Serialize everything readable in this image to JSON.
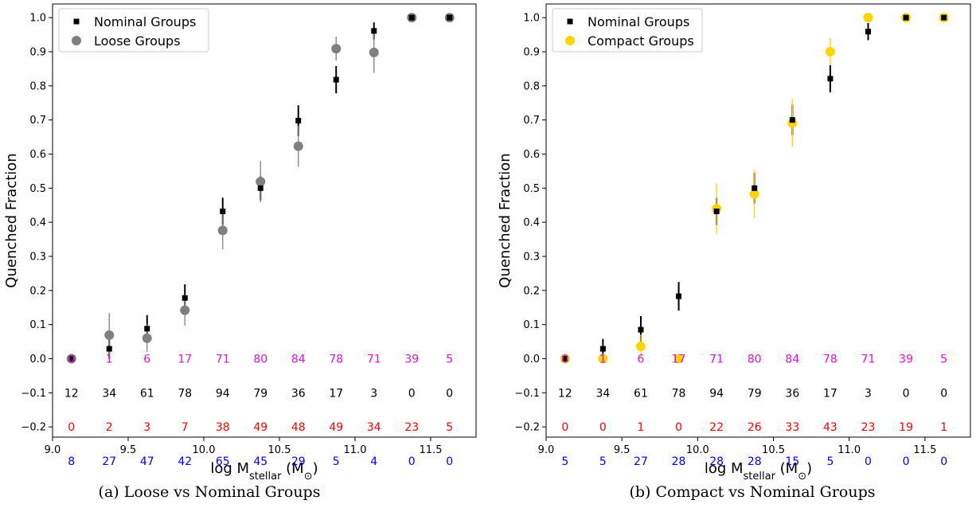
{
  "chart_data": [
    {
      "type": "scatter",
      "ylabel": "Quenched Fraction",
      "xlabel_main": "log M",
      "xlabel_sub": "stellar",
      "xlabel_unit_open": "(M",
      "xlabel_unit_sub": "⊙",
      "xlabel_unit_close": ")",
      "xlim": [
        9.0,
        11.8
      ],
      "ylim": [
        -0.23,
        1.04
      ],
      "xticks": [
        9.0,
        9.5,
        10.0,
        10.5,
        11.0,
        11.5
      ],
      "xtick_labels": [
        "9.0",
        "9.5",
        "10.0",
        "10.5",
        "11.0",
        "11.5"
      ],
      "yticks": [
        -0.2,
        -0.1,
        0.0,
        0.1,
        0.2,
        0.3,
        0.4,
        0.5,
        0.6,
        0.7,
        0.8,
        0.9,
        1.0
      ],
      "ytick_labels": [
        "−0.2",
        "−0.1",
        "0.0",
        "0.1",
        "0.2",
        "0.3",
        "0.4",
        "0.5",
        "0.6",
        "0.7",
        "0.8",
        "0.9",
        "1.0"
      ],
      "legend_position": "top-left",
      "caption": "(a) Loose vs Nominal Groups",
      "series": [
        {
          "name": "Nominal Groups",
          "marker": "square",
          "color": "#000000",
          "x": [
            9.125,
            9.375,
            9.625,
            9.875,
            10.125,
            10.375,
            10.625,
            10.875,
            11.125,
            11.375,
            11.625
          ],
          "y": [
            0.0,
            0.029,
            0.088,
            0.178,
            0.432,
            0.5,
            0.698,
            0.818,
            0.961,
            1.0,
            1.0
          ],
          "err": [
            0.0,
            0.029,
            0.04,
            0.04,
            0.04,
            0.035,
            0.045,
            0.04,
            0.025,
            0.0,
            0.0
          ]
        },
        {
          "name": "Loose Groups",
          "marker": "circle",
          "color": "#808080",
          "x": [
            9.125,
            9.375,
            9.625,
            9.875,
            10.125,
            10.375,
            10.625,
            10.875,
            11.125,
            11.375,
            11.625
          ],
          "y": [
            0.0,
            0.069,
            0.06,
            0.142,
            0.376,
            0.519,
            0.623,
            0.909,
            0.898,
            1.0,
            1.0
          ],
          "err": [
            0.0,
            0.065,
            0.04,
            0.045,
            0.055,
            0.06,
            0.06,
            0.035,
            0.06,
            0.0,
            0.0
          ]
        }
      ],
      "count_rows": [
        {
          "color": "#e010e0",
          "y": 0.0,
          "values": [
            "0",
            "1",
            "6",
            "17",
            "71",
            "80",
            "84",
            "78",
            "71",
            "39",
            "5"
          ]
        },
        {
          "color": "#000000",
          "y": -0.1,
          "values": [
            "12",
            "34",
            "61",
            "78",
            "94",
            "79",
            "36",
            "17",
            "3",
            "0",
            "0"
          ]
        },
        {
          "color": "#ff0000",
          "y": -0.2,
          "values": [
            "0",
            "2",
            "3",
            "7",
            "38",
            "49",
            "48",
            "49",
            "34",
            "23",
            "5"
          ]
        },
        {
          "color": "#0000ff",
          "y": -0.3,
          "values": [
            "8",
            "27",
            "47",
            "42",
            "65",
            "45",
            "29",
            "5",
            "4",
            "0",
            "0"
          ]
        }
      ]
    },
    {
      "type": "scatter",
      "ylabel": "Quenched Fraction",
      "xlabel_main": "log M",
      "xlabel_sub": "stellar",
      "xlabel_unit_open": "(M",
      "xlabel_unit_sub": "⊙",
      "xlabel_unit_close": ")",
      "xlim": [
        9.0,
        11.8
      ],
      "ylim": [
        -0.23,
        1.04
      ],
      "xticks": [
        9.0,
        9.5,
        10.0,
        10.5,
        11.0,
        11.5
      ],
      "xtick_labels": [
        "9.0",
        "9.5",
        "10.0",
        "10.5",
        "11.0",
        "11.5"
      ],
      "yticks": [
        -0.2,
        -0.1,
        0.0,
        0.1,
        0.2,
        0.3,
        0.4,
        0.5,
        0.6,
        0.7,
        0.8,
        0.9,
        1.0
      ],
      "ytick_labels": [
        "−0.2",
        "−0.1",
        "0.0",
        "0.1",
        "0.2",
        "0.3",
        "0.4",
        "0.5",
        "0.6",
        "0.7",
        "0.8",
        "0.9",
        "1.0"
      ],
      "legend_position": "top-left",
      "caption": "(b) Compact vs Nominal Groups",
      "series": [
        {
          "name": "Nominal Groups",
          "marker": "square",
          "color": "#000000",
          "x": [
            9.125,
            9.375,
            9.625,
            9.875,
            10.125,
            10.375,
            10.625,
            10.875,
            11.125,
            11.375,
            11.625
          ],
          "y": [
            0.0,
            0.029,
            0.085,
            0.183,
            0.432,
            0.5,
            0.7,
            0.821,
            0.959,
            1.0,
            1.0
          ],
          "err": [
            0.0,
            0.029,
            0.04,
            0.042,
            0.04,
            0.045,
            0.045,
            0.04,
            0.025,
            0.0,
            0.0
          ]
        },
        {
          "name": "Compact Groups",
          "marker": "circle",
          "color": "#ffd400",
          "x": [
            9.125,
            9.375,
            9.625,
            9.875,
            10.125,
            10.375,
            10.625,
            10.875,
            11.125,
            11.375,
            11.625
          ],
          "y": [
            0.0,
            0.0,
            0.036,
            0.0,
            0.44,
            0.483,
            0.691,
            0.9,
            1.0,
            1.0,
            1.0
          ],
          "err": [
            0.0,
            0.0,
            0.035,
            0.0,
            0.075,
            0.07,
            0.07,
            0.04,
            0.0,
            0.0,
            0.0
          ]
        }
      ],
      "count_rows": [
        {
          "color": "#e010e0",
          "y": 0.0,
          "values": [
            "0",
            "1",
            "6",
            "17",
            "71",
            "80",
            "84",
            "78",
            "71",
            "39",
            "5"
          ]
        },
        {
          "color": "#000000",
          "y": -0.1,
          "values": [
            "12",
            "34",
            "61",
            "78",
            "94",
            "79",
            "36",
            "17",
            "3",
            "0",
            "0"
          ]
        },
        {
          "color": "#ff0000",
          "y": -0.2,
          "values": [
            "0",
            "0",
            "1",
            "0",
            "22",
            "26",
            "33",
            "43",
            "23",
            "19",
            "1"
          ]
        },
        {
          "color": "#0000ff",
          "y": -0.3,
          "values": [
            "5",
            "5",
            "27",
            "28",
            "28",
            "28",
            "15",
            "5",
            "0",
            "0",
            "0"
          ]
        }
      ]
    }
  ]
}
